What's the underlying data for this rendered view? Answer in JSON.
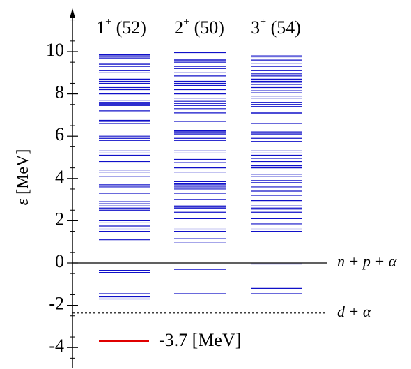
{
  "chart_data": {
    "type": "line",
    "ylabel": "ε [MeV]",
    "ylim": [
      -4.5,
      12
    ],
    "yticks": [
      -4,
      -2,
      0,
      2,
      4,
      6,
      8,
      10
    ],
    "ytick_labels": [
      "-4",
      "-2",
      "0",
      "2",
      "4",
      "6",
      "8",
      "10"
    ],
    "minor_tick_step": 1,
    "grid": false,
    "columns": [
      {
        "spin": "1",
        "parity": "+",
        "count_label": "(52)",
        "levels": [
          -1.7,
          -1.6,
          -1.45,
          -0.45,
          -0.35,
          1.1,
          1.5,
          1.6,
          1.75,
          1.9,
          2.0,
          2.5,
          2.6,
          2.7,
          2.8,
          2.9,
          3.3,
          3.6,
          3.7,
          4.1,
          4.3,
          4.4,
          4.8,
          5.1,
          5.2,
          5.3,
          5.8,
          5.9,
          6.0,
          6.6,
          6.7,
          6.75,
          7.2,
          7.45,
          7.5,
          7.55,
          7.6,
          7.7,
          8.0,
          8.2,
          8.3,
          8.5,
          8.6,
          8.7,
          9.0,
          9.1,
          9.3,
          9.4,
          9.45,
          9.7,
          9.8,
          9.85
        ]
      },
      {
        "spin": "2",
        "parity": "+",
        "count_label": "(50)",
        "levels": [
          -1.45,
          -0.3,
          0.95,
          1.15,
          1.5,
          1.6,
          2.1,
          2.4,
          2.6,
          2.65,
          2.7,
          3.0,
          3.3,
          3.5,
          3.6,
          3.7,
          3.75,
          3.85,
          4.3,
          4.5,
          4.75,
          4.9,
          5.2,
          5.3,
          5.8,
          5.9,
          6.1,
          6.15,
          6.2,
          6.25,
          6.7,
          7.1,
          7.3,
          7.45,
          7.55,
          7.65,
          7.8,
          8.0,
          8.2,
          8.4,
          8.5,
          8.6,
          8.85,
          9.0,
          9.2,
          9.3,
          9.5,
          9.6,
          9.65,
          9.95
        ]
      },
      {
        "spin": "3",
        "parity": "+",
        "count_label": "(54)",
        "levels": [
          -1.45,
          -1.2,
          -0.05,
          1.5,
          1.6,
          1.85,
          2.1,
          2.4,
          2.55,
          2.6,
          2.7,
          2.95,
          3.2,
          3.4,
          3.6,
          3.8,
          3.9,
          4.1,
          4.2,
          4.5,
          4.6,
          4.8,
          4.95,
          5.1,
          5.2,
          5.3,
          5.75,
          5.9,
          6.1,
          6.15,
          6.2,
          6.6,
          7.05,
          7.1,
          7.4,
          7.5,
          7.6,
          7.8,
          7.9,
          8.05,
          8.15,
          8.3,
          8.45,
          8.55,
          8.6,
          8.7,
          8.85,
          8.95,
          9.1,
          9.3,
          9.45,
          9.6,
          9.75,
          9.8
        ]
      }
    ],
    "thresholds": [
      {
        "y": 0,
        "label": "n + p  + α",
        "style": "solid"
      },
      {
        "y": -2.37,
        "label": "d + α",
        "style": "dashed"
      }
    ],
    "legend": {
      "value": -3.7,
      "label": "-3.7 [MeV]",
      "color": "#e00000"
    },
    "level_color": "#1010c8",
    "axis_color": "#000000"
  }
}
